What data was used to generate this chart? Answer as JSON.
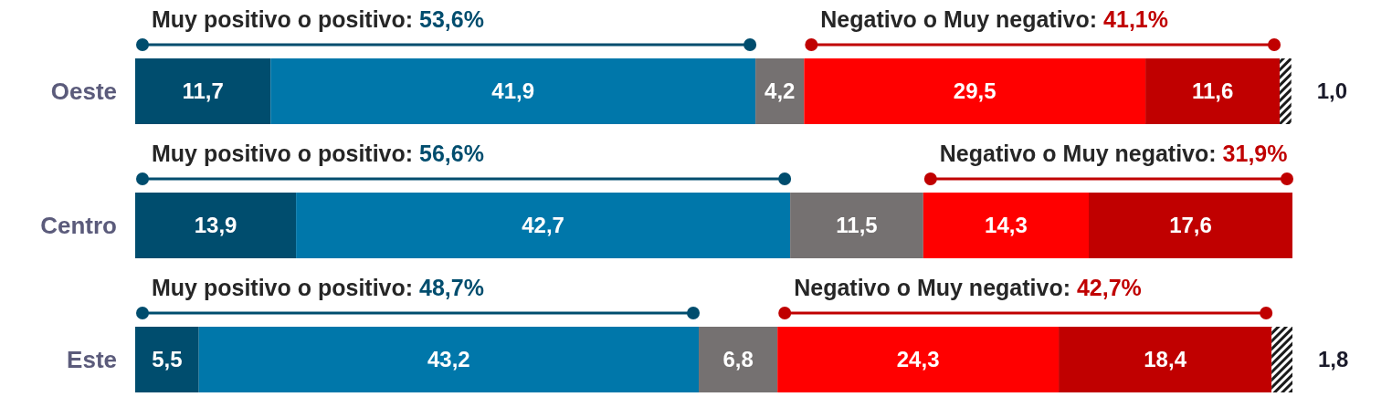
{
  "chart_data": {
    "type": "bar",
    "orientation": "horizontal",
    "stacked": true,
    "categories": [
      "Oeste",
      "Centro",
      "Este"
    ],
    "xlim": [
      0,
      100
    ],
    "tick_labels": "y",
    "series": [
      {
        "color": "#004d6e",
        "values": [
          11.7,
          13.9,
          5.5
        ],
        "value_labels": [
          "11,7",
          "13,9",
          "5,5"
        ]
      },
      {
        "color": "#0077aa",
        "values": [
          41.9,
          42.7,
          43.2
        ],
        "value_labels": [
          "41,9",
          "42,7",
          "43,2"
        ]
      },
      {
        "color": "#757171",
        "values": [
          4.2,
          11.5,
          6.8
        ],
        "value_labels": [
          "4,2",
          "11,5",
          "6,8"
        ]
      },
      {
        "color": "#ff0000",
        "values": [
          29.5,
          14.3,
          24.3
        ],
        "value_labels": [
          "29,5",
          "14,3",
          "24,3"
        ]
      },
      {
        "color": "#c00000",
        "values": [
          11.6,
          17.6,
          18.4
        ],
        "value_labels": [
          "11,6",
          "17,6",
          "18,4"
        ]
      },
      {
        "color": "#1a1a1a",
        "values": [
          1.0,
          null,
          1.8
        ],
        "value_labels": [
          "1,0",
          null,
          "1,8"
        ]
      }
    ],
    "annotations": [
      "Muy positivo o positivo: 53,6%",
      "Negativo o Muy negativo: 41,1%",
      "Muy positivo o positivo: 56,6%",
      "Negativo o Muy negativo: 31,9%",
      "Muy positivo o positivo: 48,7%",
      "Negativo o Muy negativo: 42,7%"
    ]
  }
}
